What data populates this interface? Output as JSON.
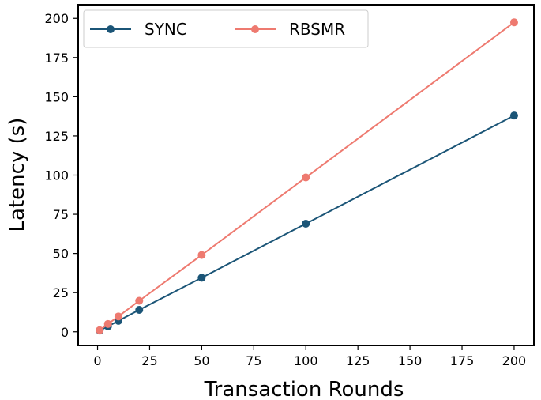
{
  "chart_data": {
    "type": "line",
    "title": "",
    "xlabel": "Transaction Rounds",
    "ylabel": "Latency (s)",
    "xlim": [
      -9.3,
      209.5
    ],
    "ylim": [
      -8.7,
      208.7
    ],
    "xticks": [
      0,
      25,
      50,
      75,
      100,
      125,
      150,
      175,
      200
    ],
    "yticks": [
      0,
      25,
      50,
      75,
      100,
      125,
      150,
      175,
      200
    ],
    "grid": false,
    "legend_position": "top-left",
    "x": [
      1,
      5,
      10,
      20,
      50,
      100,
      200
    ],
    "series": [
      {
        "name": "SYNC",
        "color": "#1b5577",
        "values": [
          0.8,
          3.5,
          7.0,
          14.0,
          34.5,
          69.0,
          138.0
        ]
      },
      {
        "name": "RBSMR",
        "color": "#ee7a70",
        "values": [
          1.0,
          5.0,
          9.8,
          19.8,
          49.0,
          98.5,
          197.5
        ]
      }
    ]
  }
}
